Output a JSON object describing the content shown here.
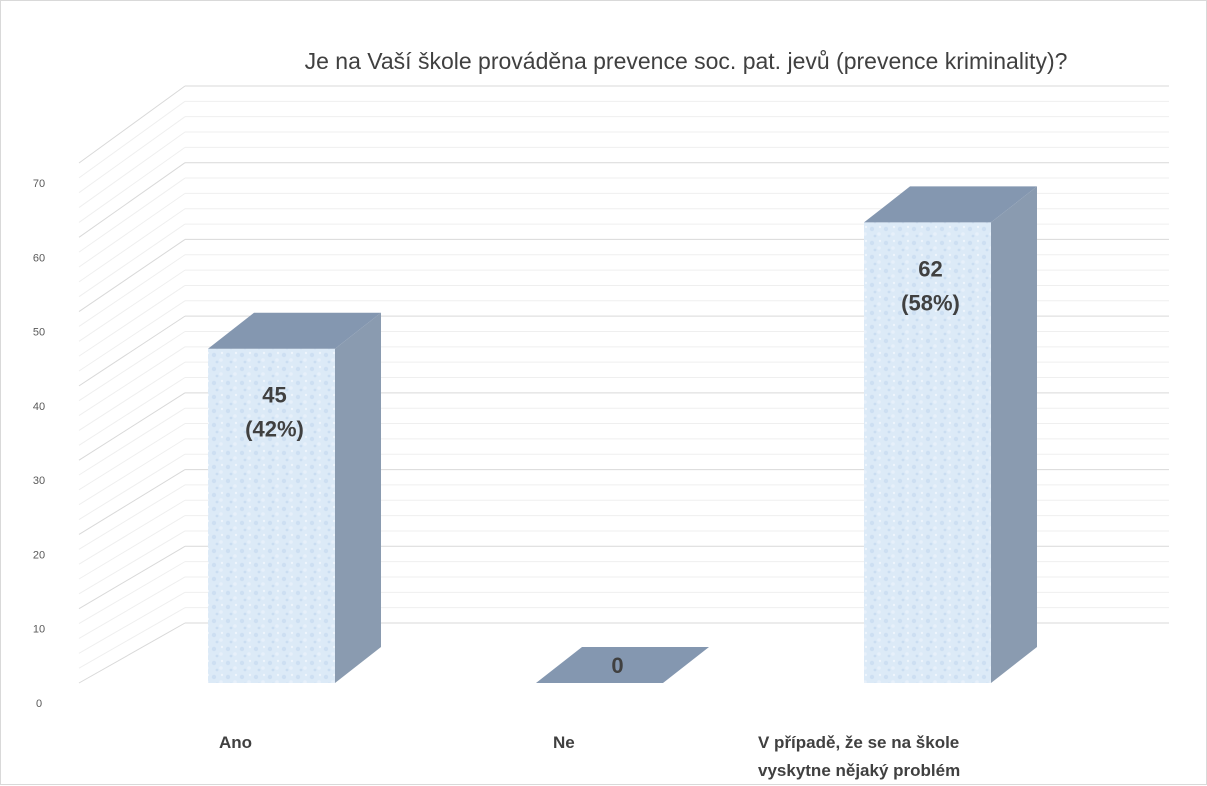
{
  "chart_data": {
    "type": "bar",
    "title": "Je na Vaší škole prováděna prevence soc. pat. jevů (prevence kriminality)?",
    "categories": [
      "Ano",
      "Ne",
      "V případě, že se na škole vyskytne nějaký problém"
    ],
    "category_label_lines": [
      [
        "Ano"
      ],
      [
        "Ne"
      ],
      [
        "V případě, že se na škole",
        "vyskytne nějaký problém"
      ]
    ],
    "values": [
      45,
      0,
      62
    ],
    "data_labels": [
      [
        "45",
        "(42%)"
      ],
      [
        "0"
      ],
      [
        "62",
        "(58%)"
      ]
    ],
    "ylim": [
      0,
      70
    ],
    "yticks": [
      0,
      10,
      20,
      30,
      40,
      50,
      60,
      70
    ],
    "xlabel": "",
    "ylabel": "",
    "grid": true,
    "legend": "none",
    "style": "3d-column",
    "colors": {
      "bar_front": "#dceaf7",
      "bar_front_speckle": "#c5daf0",
      "bar_top": "#8497b0",
      "bar_side": "#8a9bb0",
      "grid_major": "#d9d9d9",
      "grid_minor": "#efefef",
      "text": "#404040"
    }
  }
}
